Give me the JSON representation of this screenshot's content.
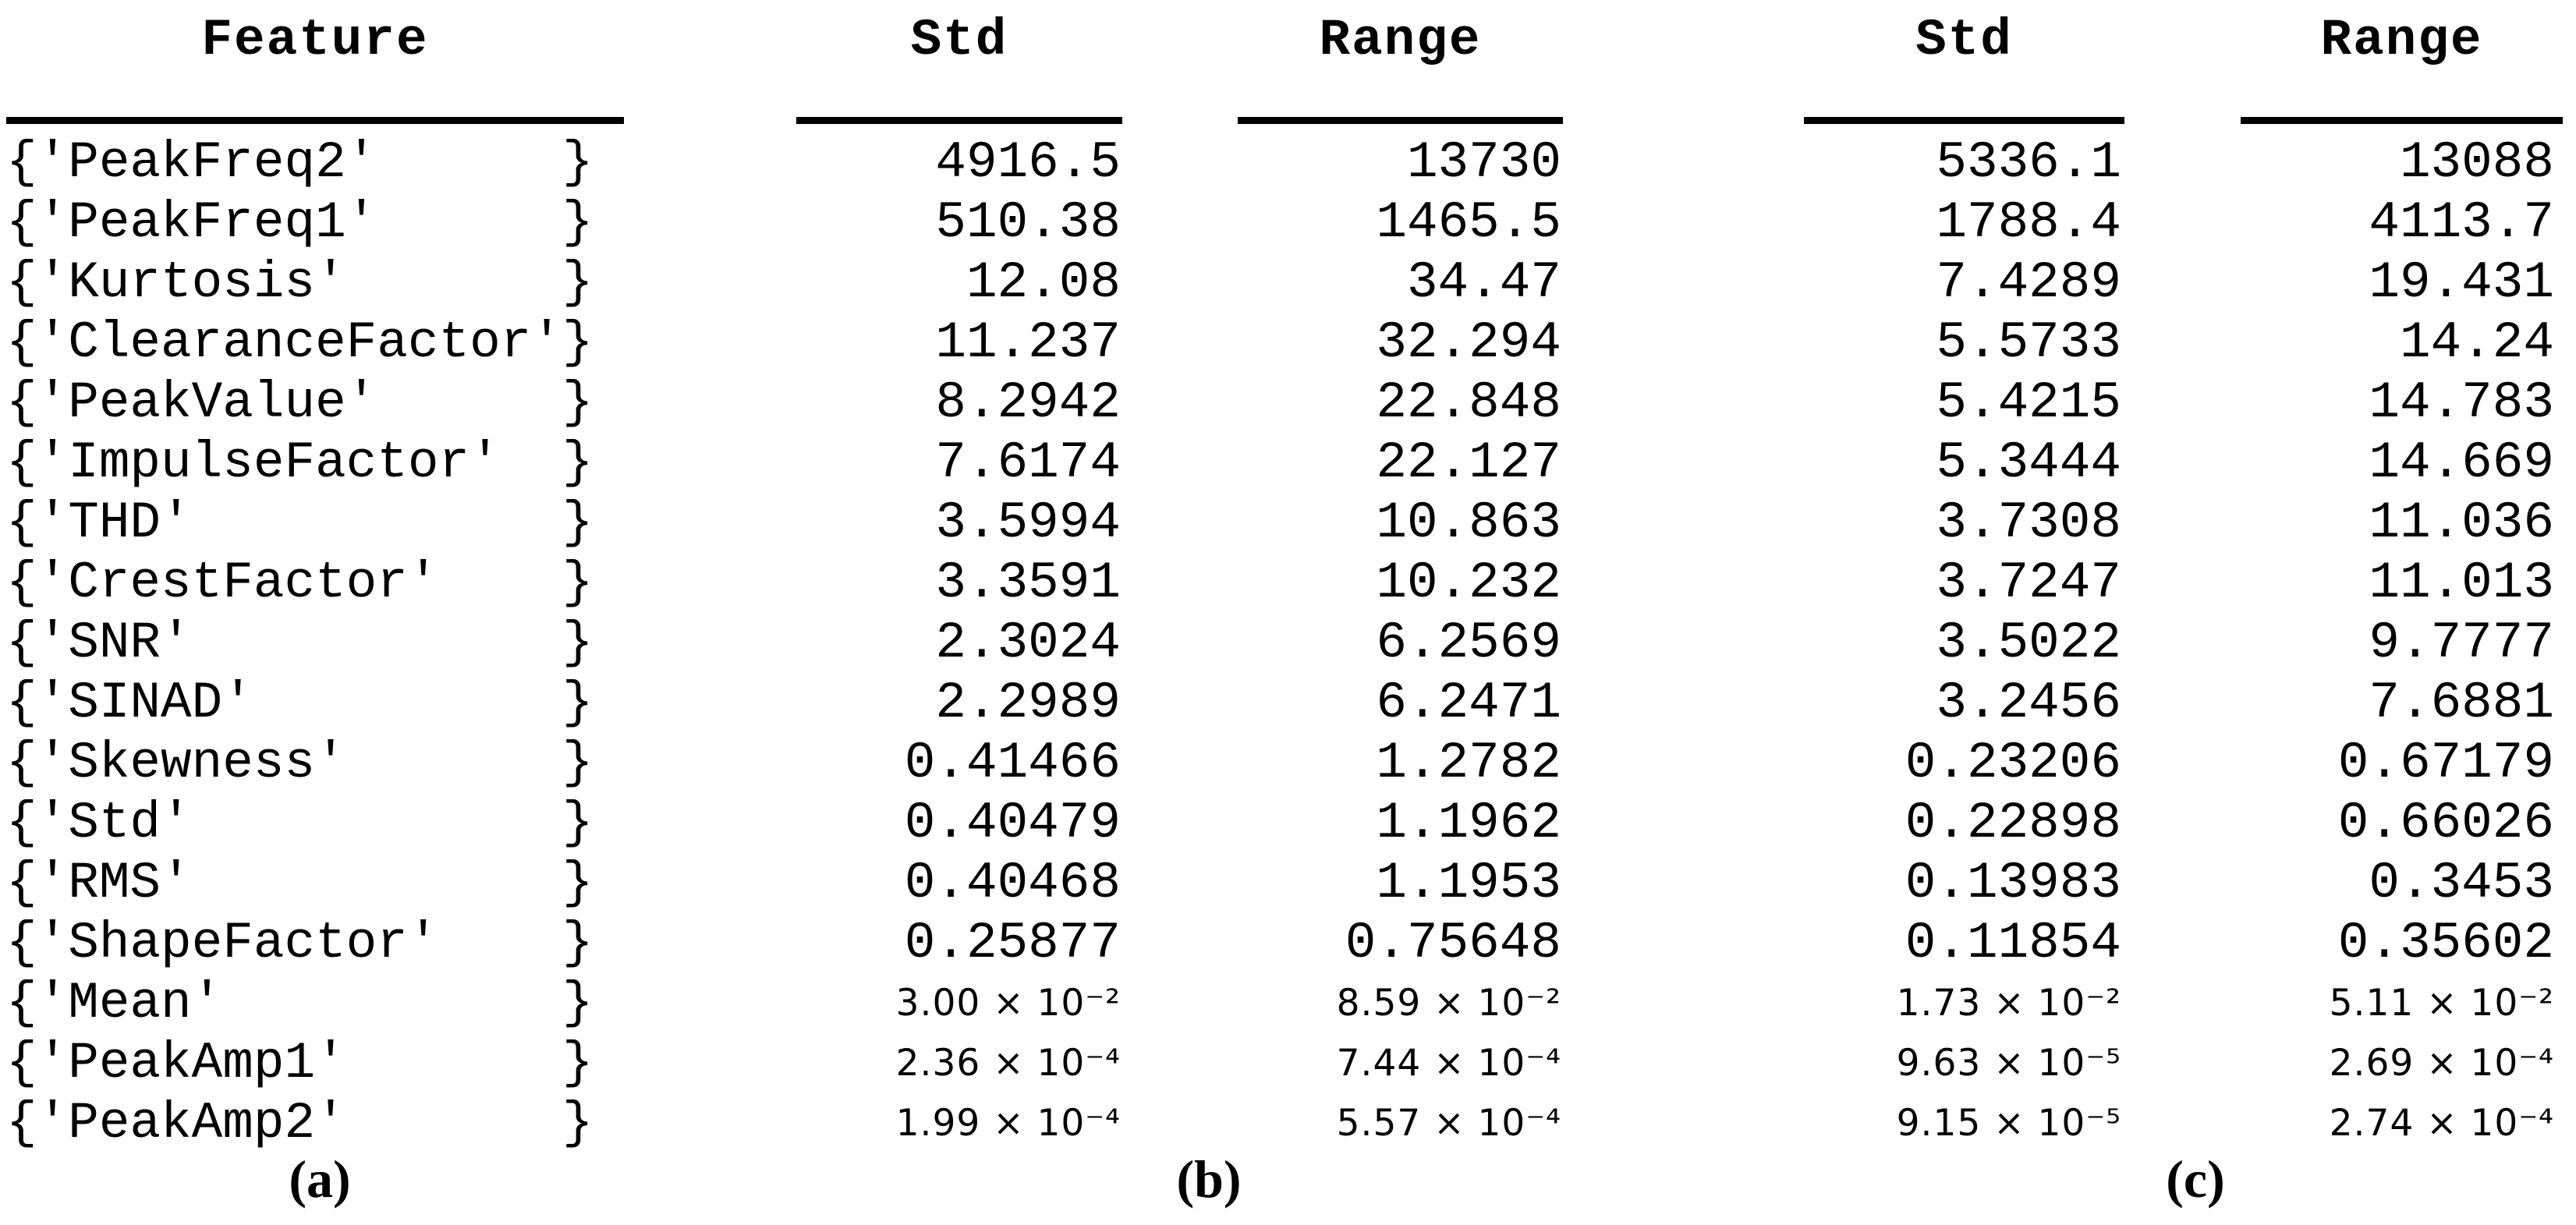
{
  "table": {
    "headers": {
      "feature": "Feature",
      "std_b": "Std",
      "range_b": "Range",
      "std_c": "Std",
      "range_c": "Range"
    },
    "rows": [
      {
        "feature": "{'PeakFreq2'      }",
        "std_b": "4916.5",
        "range_b": "13730",
        "std_c": "5336.1",
        "range_c": "13088"
      },
      {
        "feature": "{'PeakFreq1'      }",
        "std_b": "510.38",
        "range_b": "1465.5",
        "std_c": "1788.4",
        "range_c": "4113.7"
      },
      {
        "feature": "{'Kurtosis'       }",
        "std_b": "12.08",
        "range_b": "34.47",
        "std_c": "7.4289",
        "range_c": "19.431"
      },
      {
        "feature": "{'ClearanceFactor'}",
        "std_b": "11.237",
        "range_b": "32.294",
        "std_c": "5.5733",
        "range_c": "14.24"
      },
      {
        "feature": "{'PeakValue'      }",
        "std_b": "8.2942",
        "range_b": "22.848",
        "std_c": "5.4215",
        "range_c": "14.783"
      },
      {
        "feature": "{'ImpulseFactor'  }",
        "std_b": "7.6174",
        "range_b": "22.127",
        "std_c": "5.3444",
        "range_c": "14.669"
      },
      {
        "feature": "{'THD'            }",
        "std_b": "3.5994",
        "range_b": "10.863",
        "std_c": "3.7308",
        "range_c": "11.036"
      },
      {
        "feature": "{'CrestFactor'    }",
        "std_b": "3.3591",
        "range_b": "10.232",
        "std_c": "3.7247",
        "range_c": "11.013"
      },
      {
        "feature": "{'SNR'            }",
        "std_b": "2.3024",
        "range_b": "6.2569",
        "std_c": "3.5022",
        "range_c": "9.7777"
      },
      {
        "feature": "{'SINAD'          }",
        "std_b": "2.2989",
        "range_b": "6.2471",
        "std_c": "3.2456",
        "range_c": "7.6881"
      },
      {
        "feature": "{'Skewness'       }",
        "std_b": "0.41466",
        "range_b": "1.2782",
        "std_c": "0.23206",
        "range_c": "0.67179"
      },
      {
        "feature": "{'Std'            }",
        "std_b": "0.40479",
        "range_b": "1.1962",
        "std_c": "0.22898",
        "range_c": "0.66026"
      },
      {
        "feature": "{'RMS'            }",
        "std_b": "0.40468",
        "range_b": "1.1953",
        "std_c": "0.13983",
        "range_c": "0.3453"
      },
      {
        "feature": "{'ShapeFactor'    }",
        "std_b": "0.25877",
        "range_b": "0.75648",
        "std_c": "0.11854",
        "range_c": "0.35602"
      },
      {
        "feature": "{'Mean'           }",
        "std_b": "3.00 × 10⁻²",
        "range_b": "8.59 × 10⁻²",
        "std_c": "1.73 × 10⁻²",
        "range_c": "5.11 × 10⁻²"
      },
      {
        "feature": "{'PeakAmp1'       }",
        "std_b": "2.36 × 10⁻⁴",
        "range_b": "7.44 × 10⁻⁴",
        "std_c": "9.63 × 10⁻⁵",
        "range_c": "2.69 × 10⁻⁴"
      },
      {
        "feature": "{'PeakAmp2'       }",
        "std_b": "1.99 × 10⁻⁴",
        "range_b": "5.57 × 10⁻⁴",
        "std_c": "9.15 × 10⁻⁵",
        "range_c": "2.74 × 10⁻⁴"
      }
    ]
  },
  "panel_labels": {
    "a": "(a)",
    "b": "(b)",
    "c": "(c)"
  },
  "colors": {
    "text": "#000000",
    "background": "#ffffff",
    "rule": "#000000"
  }
}
